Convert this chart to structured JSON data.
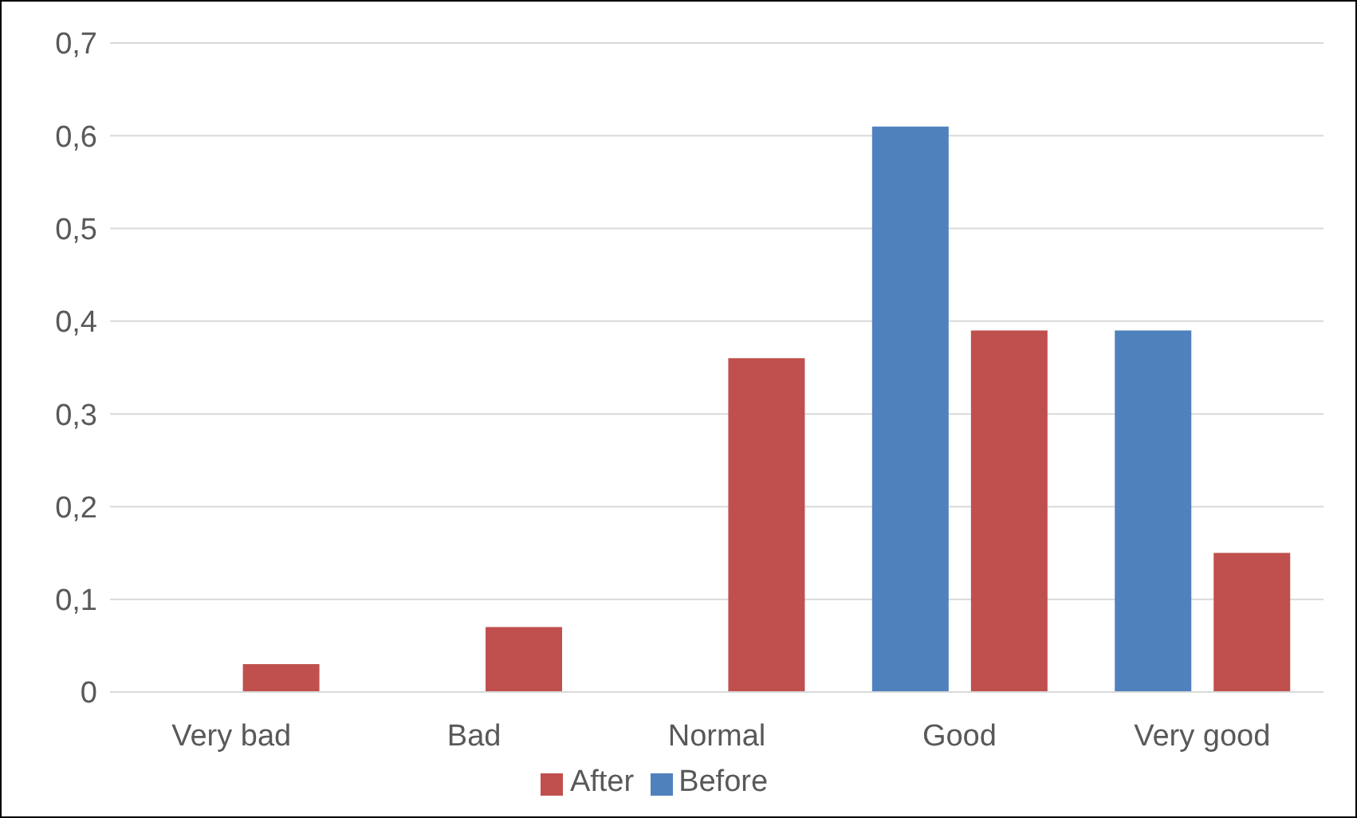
{
  "chart_data": {
    "type": "bar",
    "categories": [
      "Very bad",
      "Bad",
      "Normal",
      "Good",
      "Very good"
    ],
    "series": [
      {
        "name": "Before",
        "color": "#4f81bd",
        "values": [
          0,
          0,
          0,
          0.61,
          0.39
        ]
      },
      {
        "name": "After",
        "color": "#c0504d",
        "values": [
          0.03,
          0.07,
          0.36,
          0.39,
          0.15
        ]
      }
    ],
    "ylim": [
      0,
      0.7
    ],
    "yticks": [
      0,
      {
        "value": 0.1,
        "label": "0,1"
      },
      {
        "value": 0.2,
        "label": "0,2"
      },
      {
        "value": 0.3,
        "label": "0,3"
      },
      {
        "value": 0.4,
        "label": "0,4"
      },
      {
        "value": 0.5,
        "label": "0,5"
      },
      {
        "value": 0.6,
        "label": "0,6"
      },
      {
        "value": 0.7,
        "label": "0,7"
      }
    ],
    "grid": "y",
    "legend": "bottom"
  }
}
